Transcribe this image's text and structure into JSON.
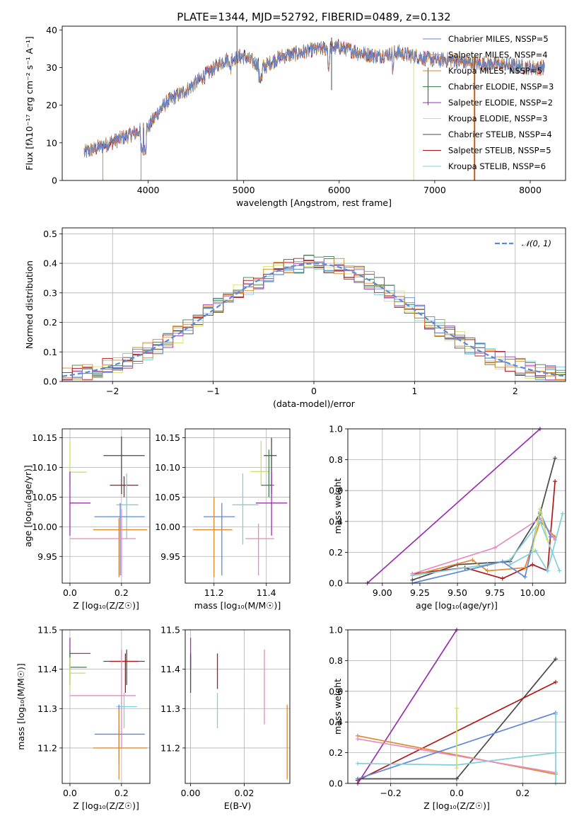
{
  "figure": {
    "title": "PLATE=1344, MJD=52792, FIBERID=0489, z=0.132"
  },
  "colors": {
    "chabrier_miles": "#5f88d9",
    "salpeter_miles": "#e08a32",
    "kroupa_miles": "#d08c2a",
    "chabrier_elodie": "#3f7f4a",
    "salpeter_elodie": "#9b30b0",
    "kroupa_elodie": "#d8e06a",
    "chabrier_stelib": "#4a4a4a",
    "salpeter_stelib": "#b01818",
    "kroupa_stelib": "#7fd0d8",
    "pink": "#e58ac2",
    "lime": "#c8e070",
    "gray": "#555555"
  },
  "chart_data": [
    {
      "type": "line",
      "panel": "spectrum",
      "title": "PLATE=1344, MJD=52792, FIBERID=0489, z=0.132",
      "xlabel": "wavelength [Angstrom, rest frame]",
      "ylabel": "Flux [fλ10⁻¹⁷ erg cm⁻² s⁻¹ A⁻¹]",
      "xlim": [
        3100,
        8370
      ],
      "ylim": [
        0,
        41
      ],
      "xticks": [
        "4000",
        "5000",
        "6000",
        "7000",
        "8000"
      ],
      "yticks": [
        "0",
        "10",
        "20",
        "30",
        "40"
      ],
      "grid": false,
      "legend_position": "top-right",
      "continuum": {
        "x": [
          3330,
          3450,
          3600,
          3800,
          4000,
          4100,
          4200,
          4400,
          4600,
          4800,
          5000,
          5200,
          5400,
          5600,
          5800,
          6000,
          6200,
          6400,
          6600,
          6800,
          7000,
          7200,
          7400,
          7600,
          7800,
          8000,
          8150
        ],
        "y": [
          7.5,
          8.5,
          10,
          12,
          14,
          18,
          21,
          24,
          28,
          32,
          33,
          30,
          33,
          34,
          35,
          35.5,
          34,
          33,
          34,
          33,
          32,
          32,
          31,
          31,
          30.5,
          30,
          30
        ]
      },
      "series": [
        {
          "name": "Chabrier MILES, NSSP=5"
        },
        {
          "name": "Salpeter MILES, NSSP=4"
        },
        {
          "name": "Kroupa MILES, NSSP=5"
        },
        {
          "name": "Chabrier ELODIE, NSSP=3"
        },
        {
          "name": "Salpeter ELODIE, NSSP=2"
        },
        {
          "name": "Kroupa ELODIE, NSSP=3"
        },
        {
          "name": "Chabrier STELIB, NSSP=4"
        },
        {
          "name": "Salpeter STELIB, NSSP=5"
        },
        {
          "name": "Kroupa STELIB, NSSP=6"
        }
      ]
    },
    {
      "type": "line",
      "panel": "residual-histogram",
      "xlabel": "(data-model)/error",
      "ylabel": "Normed distribution",
      "xlim": [
        -2.5,
        2.5
      ],
      "ylim": [
        0,
        0.52
      ],
      "xticks": [
        "−2",
        "−1",
        "0",
        "1",
        "2"
      ],
      "yticks": [
        "0.0",
        "0.1",
        "0.2",
        "0.3",
        "0.4",
        "0.5"
      ],
      "grid": true,
      "legend": "𝒩(0, 1)",
      "legend_position": "top-right",
      "bin_width": 0.1
    },
    {
      "type": "scatter",
      "panel": "age-vs-Z",
      "xlabel": "Z [log₁₀(Z/Z☉)]",
      "ylabel": "age  [log₁₀(age/yr)]",
      "xlim": [
        -0.03,
        0.31
      ],
      "ylim": [
        9.905,
        10.165
      ],
      "xticks": [
        "0.0",
        "0.2"
      ],
      "yticks": [
        "9.95",
        "10.00",
        "10.05",
        "10.10",
        "10.15"
      ],
      "grid": true,
      "points": [
        {
          "x": 0.0,
          "y": 10.092,
          "xerr": [
            0.0,
            0.065
          ],
          "yerr": [
            10.07,
            10.145
          ]
        },
        {
          "x": 0.0,
          "y": 10.04,
          "xerr": [
            0.0,
            0.08
          ],
          "yerr": [
            9.985,
            10.093
          ]
        },
        {
          "x": 0.2,
          "y": 10.12,
          "xerr": [
            0.13,
            0.29
          ],
          "yerr": [
            10.055,
            10.152
          ]
        },
        {
          "x": 0.21,
          "y": 10.07,
          "xerr": [
            0.155,
            0.265
          ],
          "yerr": [
            10.05,
            10.085
          ]
        },
        {
          "x": 0.22,
          "y": 10.037,
          "xerr": [
            0.18,
            0.265
          ],
          "yerr": [
            9.98,
            10.09
          ]
        },
        {
          "x": 0.195,
          "y": 10.017,
          "xerr": [
            0.095,
            0.29
          ],
          "yerr": [
            9.918,
            10.04
          ]
        },
        {
          "x": 0.19,
          "y": 9.995,
          "xerr": [
            0.09,
            0.3
          ],
          "yerr": [
            9.915,
            10.015
          ]
        },
        {
          "x": 0.2,
          "y": 9.98,
          "xerr": [
            0.0,
            0.255
          ],
          "yerr": [
            9.918,
            10.03
          ]
        }
      ]
    },
    {
      "type": "scatter",
      "panel": "age-vs-mass",
      "xlabel": "mass [log₁₀(M/M☉)]",
      "ylabel": "",
      "xlim": [
        11.09,
        11.49
      ],
      "ylim": [
        9.905,
        10.165
      ],
      "xticks": [
        "11.2",
        "11.4"
      ],
      "yticks": [
        "9.95",
        "10.00",
        "10.05",
        "10.10",
        "10.15"
      ],
      "grid": true,
      "points": [
        {
          "x": 11.38,
          "y": 10.093,
          "xerr": [
            11.34,
            11.41
          ],
          "yerr": [
            10.07,
            10.145
          ]
        },
        {
          "x": 11.42,
          "y": 10.12,
          "xerr": [
            11.39,
            11.44
          ],
          "yerr": [
            10.055,
            10.15
          ]
        },
        {
          "x": 11.41,
          "y": 10.07,
          "xerr": [
            11.38,
            11.43
          ],
          "yerr": [
            10.05,
            10.13
          ]
        },
        {
          "x": 11.42,
          "y": 10.04,
          "xerr": [
            11.36,
            11.48
          ],
          "yerr": [
            9.985,
            10.093
          ]
        },
        {
          "x": 11.31,
          "y": 10.037,
          "xerr": [
            11.27,
            11.37
          ],
          "yerr": [
            9.97,
            10.09
          ]
        },
        {
          "x": 11.23,
          "y": 10.017,
          "xerr": [
            11.16,
            11.28
          ],
          "yerr": [
            9.918,
            10.04
          ]
        },
        {
          "x": 11.2,
          "y": 9.995,
          "xerr": [
            11.12,
            11.27
          ],
          "yerr": [
            9.915,
            10.05
          ]
        },
        {
          "x": 11.37,
          "y": 9.98,
          "xerr": [
            11.32,
            11.43
          ],
          "yerr": [
            9.918,
            10.005
          ]
        }
      ]
    },
    {
      "type": "line",
      "panel": "mass-weight-vs-age",
      "xlabel": "age  [log₁₀(age/yr)]",
      "ylabel": "mass weight",
      "xlim": [
        8.77,
        10.22
      ],
      "ylim": [
        0,
        1.0
      ],
      "xticks": [
        "9.00",
        "9.25",
        "9.50",
        "9.75",
        "10.00"
      ],
      "yticks": [
        "0.0",
        "0.2",
        "0.4",
        "0.6",
        "0.8",
        "1.0"
      ],
      "grid": true,
      "series": [
        {
          "x": [
            8.9,
            10.05
          ],
          "y": [
            0.0,
            1.0
          ]
        },
        {
          "x": [
            9.2,
            9.5,
            9.85,
            10.05,
            10.15
          ],
          "y": [
            0.02,
            0.12,
            0.14,
            0.45,
            0.81
          ]
        },
        {
          "x": [
            9.2,
            9.55,
            9.8,
            10.0,
            10.1,
            10.15
          ],
          "y": [
            0.06,
            0.1,
            0.03,
            0.12,
            0.08,
            0.66
          ]
        },
        {
          "x": [
            9.2,
            9.6,
            9.7,
            9.95,
            10.05,
            10.15
          ],
          "y": [
            0.05,
            0.15,
            0.08,
            0.1,
            0.4,
            0.3
          ]
        },
        {
          "x": [
            9.2,
            9.75,
            10.05,
            10.15
          ],
          "y": [
            0.06,
            0.23,
            0.42,
            0.28
          ]
        },
        {
          "x": [
            9.2,
            9.7,
            9.85,
            10.05,
            10.18
          ],
          "y": [
            0.05,
            0.12,
            0.15,
            0.4,
            0.08
          ]
        },
        {
          "x": [
            9.2,
            9.8,
            9.95,
            10.05,
            10.12
          ],
          "y": [
            0.0,
            0.14,
            0.04,
            0.46,
            0.3
          ]
        },
        {
          "x": [
            9.85,
            10.02,
            10.1,
            10.2
          ],
          "y": [
            0.12,
            0.21,
            0.08,
            0.45
          ]
        },
        {
          "x": [
            10.0,
            10.05,
            10.1
          ],
          "y": [
            0.22,
            0.48,
            0.28
          ]
        }
      ]
    },
    {
      "type": "scatter",
      "panel": "mass-vs-Z",
      "xlabel": "Z [log₁₀(Z/Z☉)]",
      "ylabel": "mass [log₁₀(M/M☉)]",
      "xlim": [
        -0.03,
        0.31
      ],
      "ylim": [
        11.11,
        11.5
      ],
      "xticks": [
        "0.0",
        "0.2"
      ],
      "yticks": [
        "11.2",
        "11.3",
        "11.4",
        "11.5"
      ],
      "grid": true,
      "points": [
        {
          "x": 0.0,
          "y": 11.44,
          "xerr": [
            0.0,
            0.08
          ],
          "yerr": [
            11.4,
            11.48
          ]
        },
        {
          "x": 0.0,
          "y": 11.405,
          "xerr": [
            0.0,
            0.065
          ],
          "yerr": [
            11.36,
            11.45
          ]
        },
        {
          "x": 0.0,
          "y": 11.39,
          "xerr": [
            0.0,
            0.06
          ],
          "yerr": [
            11.35,
            11.43
          ]
        },
        {
          "x": 0.22,
          "y": 11.42,
          "xerr": [
            0.13,
            0.29
          ],
          "yerr": [
            11.36,
            11.45
          ]
        },
        {
          "x": 0.215,
          "y": 11.42,
          "xerr": [
            0.155,
            0.265
          ],
          "yerr": [
            11.34,
            11.44
          ]
        },
        {
          "x": 0.2,
          "y": 11.333,
          "xerr": [
            0.0,
            0.255
          ],
          "yerr": [
            11.2,
            11.45
          ]
        },
        {
          "x": 0.21,
          "y": 11.305,
          "xerr": [
            0.18,
            0.26
          ],
          "yerr": [
            11.25,
            11.34
          ]
        },
        {
          "x": 0.19,
          "y": 11.235,
          "xerr": [
            0.095,
            0.29
          ],
          "yerr": [
            11.16,
            11.31
          ]
        },
        {
          "x": 0.19,
          "y": 11.2,
          "xerr": [
            0.09,
            0.3
          ],
          "yerr": [
            11.12,
            11.3
          ]
        }
      ]
    },
    {
      "type": "scatter",
      "panel": "mass-vs-EBV",
      "xlabel": "E(B-V)",
      "ylabel": "",
      "xlim": [
        -0.002,
        0.037
      ],
      "ylim": [
        11.11,
        11.5
      ],
      "xticks": [
        "0.00",
        "0.02"
      ],
      "yticks": [
        "11.2",
        "11.3",
        "11.4",
        "11.5"
      ],
      "grid": true,
      "points": [
        {
          "x": 0.0,
          "yerr": [
            11.4,
            11.48
          ]
        },
        {
          "x": 0.0,
          "yerr": [
            11.34,
            11.44
          ]
        },
        {
          "x": 0.01,
          "yerr": [
            11.35,
            11.44
          ]
        },
        {
          "x": 0.01,
          "yerr": [
            11.25,
            11.34
          ]
        },
        {
          "x": 0.0275,
          "yerr": [
            11.26,
            11.45
          ]
        },
        {
          "x": 0.036,
          "yerr": [
            11.12,
            11.31
          ]
        }
      ]
    },
    {
      "type": "line",
      "panel": "mass-weight-vs-Z",
      "xlabel": "Z [log₁₀(Z/Z☉)]",
      "ylabel": "mass weight",
      "xlim": [
        -0.33,
        0.33
      ],
      "ylim": [
        0,
        1.0
      ],
      "xticks": [
        "−0.2",
        "0.0",
        "0.2"
      ],
      "yticks": [
        "0.0",
        "0.2",
        "0.4",
        "0.6",
        "0.8",
        "1.0"
      ],
      "grid": true,
      "series": [
        {
          "x": [
            -0.3,
            0.0
          ],
          "y": [
            0.0,
            1.0
          ]
        },
        {
          "x": [
            -0.3,
            0.0,
            0.3
          ],
          "y": [
            0.03,
            0.03,
            0.81
          ]
        },
        {
          "x": [
            -0.3,
            0.3
          ],
          "y": [
            0.02,
            0.66
          ]
        },
        {
          "x": [
            -0.3,
            0.3
          ],
          "y": [
            0.31,
            0.06
          ]
        },
        {
          "x": [
            -0.3,
            0.3
          ],
          "y": [
            0.29,
            0.07
          ]
        },
        {
          "x": [
            -0.3,
            0.3
          ],
          "y": [
            0.03,
            0.46
          ]
        },
        {
          "x": [
            -0.3,
            0.0,
            0.3
          ],
          "y": [
            0.13,
            0.12,
            0.2
          ]
        },
        {
          "x": [
            0.0,
            0.0
          ],
          "y": [
            0.1,
            0.49
          ]
        },
        {
          "x": [
            0.3,
            0.3
          ],
          "y": [
            0.0,
            0.45
          ]
        }
      ]
    }
  ]
}
